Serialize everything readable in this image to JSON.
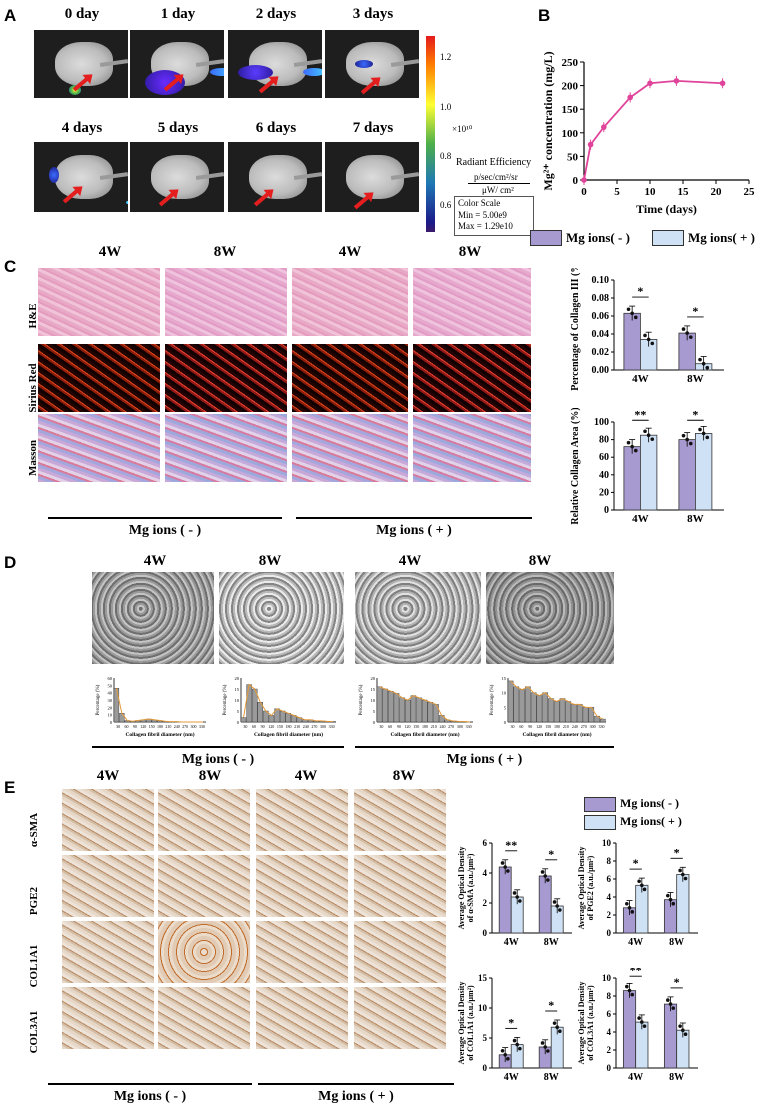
{
  "panel_labels": [
    "A",
    "B",
    "C",
    "D",
    "E"
  ],
  "colors": {
    "minus": "#a79ad0",
    "plus": "#cfe2f5",
    "line": "#e0439a",
    "arrow": "#e41e1e"
  },
  "panelA": {
    "days": [
      "0 day",
      "1 day",
      "2 days",
      "3 days",
      "4 days",
      "5 days",
      "6 days",
      "7 days"
    ],
    "colorbar_ticks": [
      "1.2",
      "1.0",
      "0.8",
      "0.6"
    ],
    "multiplier": "×10¹⁰",
    "radiant_title": "Radiant Efficiency",
    "radiant_units_top": "p/sec/cm²/sr",
    "radiant_units_bottom": "μW/ cm²",
    "color_scale_title": "Color Scale",
    "color_scale_min": "Min = 5.00e9",
    "color_scale_max": "Max = 1.29e10"
  },
  "panelC": {
    "columns": [
      "4W",
      "8W",
      "4W",
      "8W"
    ],
    "rows": [
      "H&E",
      "Sirius Red",
      "Masson"
    ],
    "group_minus": "Mg ions ( - )",
    "group_plus": "Mg ions ( + )"
  },
  "panelD": {
    "columns": [
      "4W",
      "8W",
      "4W",
      "8W"
    ],
    "group_minus": "Mg ions ( - )",
    "group_plus": "Mg ions ( + )",
    "hist_xlabel": "Collagen fibril diameter (nm)",
    "hist_ylabel": "Percentage (%)"
  },
  "panelE": {
    "columns": [
      "4W",
      "8W",
      "4W",
      "8W"
    ],
    "rows": [
      "α-SMA",
      "PGE2",
      "COL1A1",
      "COL3A1"
    ],
    "group_minus": "Mg ions ( - )",
    "group_plus": "Mg ions ( + )"
  },
  "legend_top": {
    "minus": "Mg ions( - )",
    "plus": "Mg ions( + )"
  },
  "legend_e": {
    "minus": "Mg ions( - )",
    "plus": "Mg ions( + )"
  },
  "chart_data": [
    {
      "id": "B",
      "type": "line",
      "xlabel": "Time (days)",
      "ylabel": "Mg²⁺ concentration (mg/L)",
      "x": [
        0,
        1,
        3,
        7,
        10,
        14,
        21
      ],
      "y": [
        0,
        75,
        112,
        175,
        205,
        210,
        205
      ],
      "xlim": [
        0,
        25
      ],
      "ylim": [
        0,
        250
      ],
      "xticks": [
        "0",
        "5",
        "10",
        "15",
        "20",
        "25"
      ],
      "yticks": [
        "0",
        "50",
        "100",
        "150",
        "200",
        "250"
      ]
    },
    {
      "id": "C1",
      "type": "bar",
      "ylabel": "Percentage of Collagen III (%)",
      "categories": [
        "4W",
        "8W"
      ],
      "series": [
        {
          "values": [
            0.063,
            0.041
          ]
        },
        {
          "values": [
            0.034,
            0.007
          ]
        }
      ],
      "ylim": [
        0,
        0.1
      ],
      "yticks": [
        "0.00",
        "0.02",
        "0.04",
        "0.06",
        "0.08",
        "0.10"
      ],
      "significance": [
        "*",
        "*"
      ]
    },
    {
      "id": "C2",
      "type": "bar",
      "ylabel": "Relative Collagen Area (%)",
      "categories": [
        "4W",
        "8W"
      ],
      "series": [
        {
          "values": [
            72,
            80
          ]
        },
        {
          "values": [
            85,
            87
          ]
        }
      ],
      "ylim": [
        0,
        100
      ],
      "yticks": [
        "0",
        "20",
        "40",
        "60",
        "80",
        "100"
      ],
      "significance": [
        "**",
        "*"
      ]
    },
    {
      "id": "E1",
      "type": "bar",
      "ylabel": "Average Optical Density of α-SMA (a.u./μm²)",
      "categories": [
        "4W",
        "8W"
      ],
      "series": [
        {
          "values": [
            4.4,
            3.8
          ]
        },
        {
          "values": [
            2.4,
            1.8
          ]
        }
      ],
      "ylim": [
        0,
        6
      ],
      "yticks": [
        "0",
        "2",
        "4",
        "6"
      ],
      "significance": [
        "**",
        "*"
      ]
    },
    {
      "id": "E2",
      "type": "bar",
      "ylabel": "Average Optical Density of PGE2 (a.u./μm²)",
      "categories": [
        "4W",
        "8W"
      ],
      "series": [
        {
          "values": [
            2.8,
            3.7
          ]
        },
        {
          "values": [
            5.3,
            6.5
          ]
        }
      ],
      "ylim": [
        0,
        10
      ],
      "yticks": [
        "0",
        "2",
        "4",
        "6",
        "8",
        "10"
      ],
      "significance": [
        "*",
        "*"
      ]
    },
    {
      "id": "E3",
      "type": "bar",
      "ylabel": "Average Optical Density of COL1A1 (a.u./μm²)",
      "categories": [
        "4W",
        "8W"
      ],
      "series": [
        {
          "values": [
            2.2,
            3.5
          ]
        },
        {
          "values": [
            3.9,
            6.8
          ]
        }
      ],
      "ylim": [
        0,
        15
      ],
      "yticks": [
        "0",
        "5",
        "10",
        "15"
      ],
      "significance": [
        "*",
        "*"
      ]
    },
    {
      "id": "E4",
      "type": "bar",
      "ylabel": "Average Optical Density of COL3A1 (a.u./μm²)",
      "categories": [
        "4W",
        "8W"
      ],
      "series": [
        {
          "values": [
            8.6,
            7.1
          ]
        },
        {
          "values": [
            5.1,
            4.2
          ]
        }
      ],
      "ylim": [
        0,
        10
      ],
      "yticks": [
        "0",
        "2",
        "4",
        "6",
        "8",
        "10"
      ],
      "significance": [
        "**",
        "*"
      ]
    },
    {
      "id": "D1",
      "type": "bar",
      "xlabel": "Collagen fibril diameter (nm)",
      "ylabel": "Percentage (%)",
      "ylim": [
        0,
        60
      ],
      "yticks": [
        "0",
        "10",
        "20",
        "30",
        "40",
        "50",
        "60"
      ],
      "xticks": [
        "30",
        "60",
        "90",
        "120",
        "150",
        "180",
        "210",
        "240",
        "270",
        "300",
        "330"
      ],
      "values": [
        46,
        12,
        2,
        1,
        2,
        3,
        4,
        3,
        2,
        1,
        0.5,
        0.5,
        0,
        0,
        0,
        0,
        0
      ]
    },
    {
      "id": "D2",
      "type": "bar",
      "xlabel": "Collagen fibril diameter (nm)",
      "ylabel": "Percentage (%)",
      "ylim": [
        0,
        20
      ],
      "yticks": [
        "0",
        "5",
        "10",
        "15",
        "20"
      ],
      "xticks": [
        "30",
        "60",
        "90",
        "120",
        "150",
        "180",
        "210",
        "240",
        "270",
        "300",
        "330"
      ],
      "values": [
        2,
        17,
        15,
        9,
        5,
        3,
        6,
        5,
        4,
        3,
        2,
        1,
        1,
        0.5,
        0.5,
        0.3,
        0.2
      ]
    },
    {
      "id": "D3",
      "type": "bar",
      "xlabel": "Collagen fibril diameter (nm)",
      "ylabel": "Percentage (%)",
      "ylim": [
        0,
        20
      ],
      "yticks": [
        "0",
        "5",
        "10",
        "15",
        "20"
      ],
      "xticks": [
        "30",
        "60",
        "90",
        "120",
        "150",
        "180",
        "210",
        "240",
        "270",
        "300",
        "330"
      ],
      "values": [
        16,
        15,
        14,
        13,
        11,
        10,
        12,
        11,
        10,
        9,
        8,
        3,
        1,
        0.5,
        0.3,
        0.2,
        0
      ]
    },
    {
      "id": "D4",
      "type": "bar",
      "xlabel": "Collagen fibril diameter (nm)",
      "ylabel": "Percentage (%)",
      "ylim": [
        0,
        15
      ],
      "yticks": [
        "0",
        "5",
        "10",
        "15"
      ],
      "xticks": [
        "30",
        "60",
        "90",
        "120",
        "150",
        "180",
        "210",
        "240",
        "270",
        "300",
        "330"
      ],
      "values": [
        14,
        12,
        11,
        12,
        10,
        9,
        10,
        8,
        7,
        8,
        7,
        6,
        6,
        5,
        5,
        2,
        1
      ]
    }
  ]
}
